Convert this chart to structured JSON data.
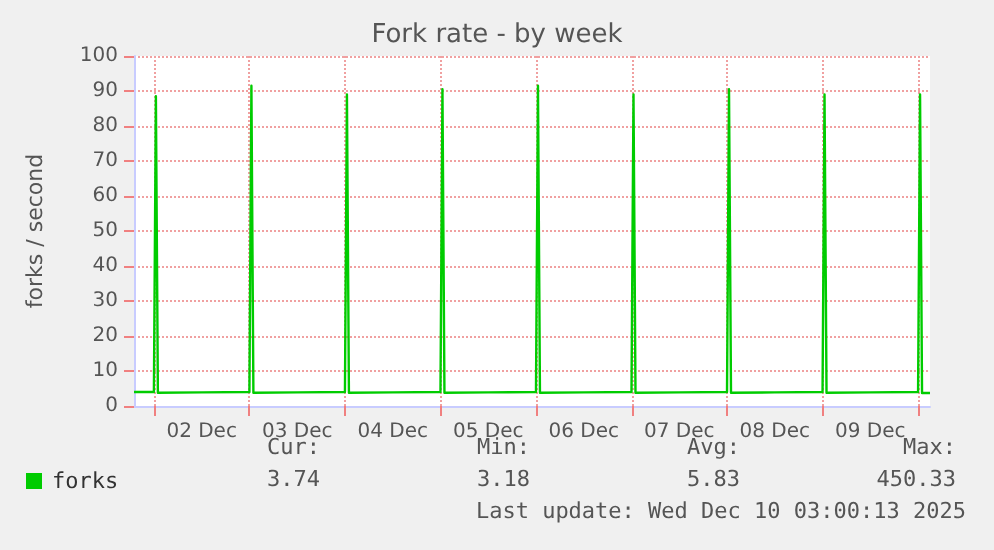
{
  "chart_data": {
    "type": "line",
    "title": "Fork rate - by week",
    "ylabel": "forks / second",
    "x": [
      "2025-12-01T19:00",
      "2025-12-02T00:00",
      "2025-12-02T00:30",
      "2025-12-02T01:00",
      "2025-12-02T12:00",
      "2025-12-03T00:00",
      "2025-12-03T00:30",
      "2025-12-03T01:00",
      "2025-12-03T12:00",
      "2025-12-04T00:00",
      "2025-12-04T00:30",
      "2025-12-04T01:00",
      "2025-12-04T12:00",
      "2025-12-05T00:00",
      "2025-12-05T00:30",
      "2025-12-05T01:00",
      "2025-12-05T12:00",
      "2025-12-06T00:00",
      "2025-12-06T00:30",
      "2025-12-06T01:00",
      "2025-12-06T12:00",
      "2025-12-07T00:00",
      "2025-12-07T00:30",
      "2025-12-07T01:00",
      "2025-12-07T12:00",
      "2025-12-08T00:00",
      "2025-12-08T00:30",
      "2025-12-08T01:00",
      "2025-12-08T12:00",
      "2025-12-09T00:00",
      "2025-12-09T00:30",
      "2025-12-09T01:00",
      "2025-12-09T12:00",
      "2025-12-10T00:00",
      "2025-12-10T00:30",
      "2025-12-10T01:00",
      "2025-12-10T03:00"
    ],
    "series": [
      {
        "name": "forks",
        "color": "#00cc00",
        "values": [
          4,
          4,
          88.5,
          3.8,
          3.9,
          4,
          91.5,
          3.8,
          3.9,
          4,
          89,
          3.8,
          3.9,
          4,
          90.5,
          3.8,
          3.9,
          4,
          91.5,
          3.8,
          3.9,
          4,
          89,
          3.8,
          3.9,
          4,
          90.5,
          3.8,
          3.9,
          4,
          89,
          3.8,
          3.9,
          4,
          89,
          3.7,
          3.7
        ]
      }
    ],
    "xlim": [
      "2025-12-01T19:00",
      "2025-12-10T03:00"
    ],
    "xticks": [
      {
        "value": "2025-12-02T00:00",
        "label": null
      },
      {
        "value": "2025-12-02T12:00",
        "label": "02 Dec"
      },
      {
        "value": "2025-12-03T00:00",
        "label": null
      },
      {
        "value": "2025-12-03T12:00",
        "label": "03 Dec"
      },
      {
        "value": "2025-12-04T00:00",
        "label": null
      },
      {
        "value": "2025-12-04T12:00",
        "label": "04 Dec"
      },
      {
        "value": "2025-12-05T00:00",
        "label": null
      },
      {
        "value": "2025-12-05T12:00",
        "label": "05 Dec"
      },
      {
        "value": "2025-12-06T00:00",
        "label": null
      },
      {
        "value": "2025-12-06T12:00",
        "label": "06 Dec"
      },
      {
        "value": "2025-12-07T00:00",
        "label": null
      },
      {
        "value": "2025-12-07T12:00",
        "label": "07 Dec"
      },
      {
        "value": "2025-12-08T00:00",
        "label": null
      },
      {
        "value": "2025-12-08T12:00",
        "label": "08 Dec"
      },
      {
        "value": "2025-12-09T00:00",
        "label": null
      },
      {
        "value": "2025-12-09T12:00",
        "label": "09 Dec"
      },
      {
        "value": "2025-12-10T00:00",
        "label": null
      }
    ],
    "ylim": [
      0,
      100
    ],
    "yticks": [
      0,
      10,
      20,
      30,
      40,
      50,
      60,
      70,
      80,
      90,
      100
    ],
    "grid": true,
    "legend": "bottom left",
    "marker": "none",
    "line_style": "solid",
    "annotations": [
      "Cur:",
      "3.74",
      "Min:",
      "3.18",
      "Avg:",
      "5.83",
      "Max:",
      "450.33",
      "Last update: Wed Dec 10 03:00:13 2025"
    ]
  }
}
